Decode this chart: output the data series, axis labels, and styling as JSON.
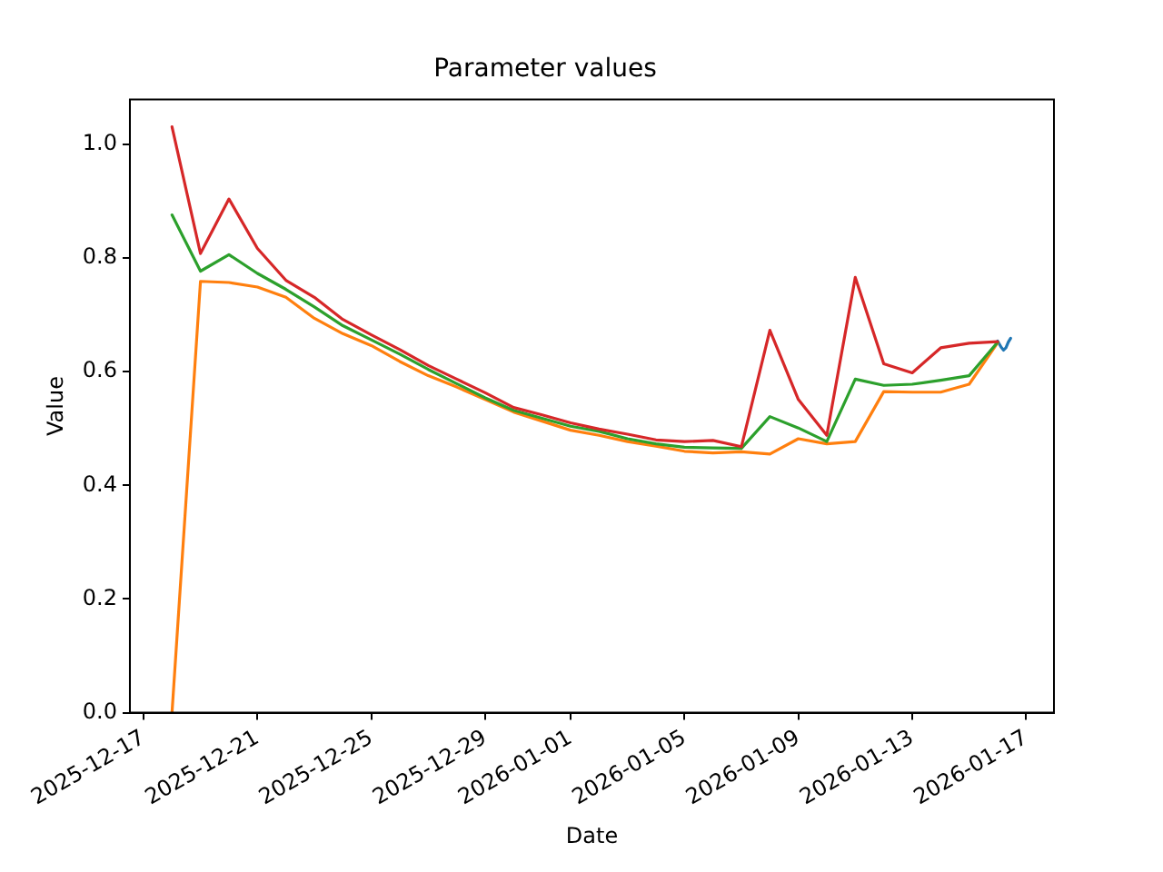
{
  "chart_data": {
    "type": "line",
    "title": "Parameter values",
    "xlabel": "Date",
    "ylabel": "Value",
    "xlim": [
      "2025-12-16T12:30",
      "2026-01-17T23:30"
    ],
    "xticks": [
      "2025-12-17",
      "2025-12-21",
      "2025-12-25",
      "2025-12-29",
      "2026-01-01",
      "2026-01-05",
      "2026-01-09",
      "2026-01-13",
      "2026-01-17"
    ],
    "ylim": [
      0,
      1.079
    ],
    "yticks": [
      {
        "value": 0,
        "label": "0.0"
      },
      0.2,
      0.4,
      0.6,
      0.8,
      {
        "value": 1,
        "label": "1.0"
      }
    ],
    "grid": false,
    "legend": false,
    "marker": "none",
    "line_style": "solid",
    "series": [
      {
        "color": "#1f77b4",
        "x": [
          "2026-01-16T00:00",
          "2026-01-16T03:00",
          "2026-01-16T05:00",
          "2026-01-16T07:00",
          "2026-01-16T09:00",
          "2026-01-16T11:00"
        ],
        "values": [
          0.654,
          0.643,
          0.638,
          0.642,
          0.652,
          0.659
        ]
      },
      {
        "color": "#ff7f0e",
        "x": [
          "2025-12-18",
          "2025-12-19",
          "2025-12-20",
          "2025-12-21",
          "2025-12-22",
          "2025-12-23",
          "2025-12-24",
          "2025-12-25",
          "2025-12-26",
          "2025-12-27",
          "2025-12-28",
          "2025-12-29",
          "2025-12-30",
          "2025-12-31",
          "2026-01-01",
          "2026-01-02",
          "2026-01-03",
          "2026-01-04",
          "2026-01-05",
          "2026-01-06",
          "2026-01-07",
          "2026-01-08",
          "2026-01-09",
          "2026-01-10",
          "2026-01-11",
          "2026-01-12",
          "2026-01-13",
          "2026-01-14",
          "2026-01-15",
          "2026-01-16"
        ],
        "values": [
          0,
          0.759,
          0.757,
          0.749,
          0.731,
          0.694,
          0.667,
          0.646,
          0.618,
          0.593,
          0.573,
          0.551,
          0.529,
          0.513,
          0.497,
          0.488,
          0.477,
          0.469,
          0.46,
          0.457,
          0.459,
          0.455,
          0.482,
          0.473,
          0.477,
          0.565,
          0.564,
          0.564,
          0.578,
          0.651
        ]
      },
      {
        "color": "#2ca02c",
        "x": [
          "2025-12-18",
          "2025-12-19",
          "2025-12-20",
          "2025-12-21",
          "2025-12-22",
          "2025-12-23",
          "2025-12-24",
          "2025-12-25",
          "2025-12-26",
          "2025-12-27",
          "2025-12-28",
          "2025-12-29",
          "2025-12-30",
          "2025-12-31",
          "2026-01-01",
          "2026-01-02",
          "2026-01-03",
          "2026-01-04",
          "2026-01-05",
          "2026-01-06",
          "2026-01-07",
          "2026-01-08",
          "2026-01-09",
          "2026-01-10",
          "2026-01-11",
          "2026-01-12",
          "2026-01-13",
          "2026-01-14",
          "2026-01-15",
          "2026-01-16"
        ],
        "values": [
          0.876,
          0.777,
          0.806,
          0.773,
          0.745,
          0.714,
          0.681,
          0.656,
          0.631,
          0.604,
          0.579,
          0.554,
          0.532,
          0.518,
          0.504,
          0.495,
          0.482,
          0.473,
          0.467,
          0.466,
          0.465,
          0.521,
          0.501,
          0.477,
          0.587,
          0.576,
          0.578,
          0.585,
          0.593,
          0.652
        ]
      },
      {
        "color": "#d62728",
        "x": [
          "2025-12-18",
          "2025-12-19",
          "2025-12-20",
          "2025-12-21",
          "2025-12-22",
          "2025-12-23",
          "2025-12-24",
          "2025-12-25",
          "2025-12-26",
          "2025-12-27",
          "2025-12-28",
          "2025-12-29",
          "2025-12-30",
          "2025-12-31",
          "2026-01-01",
          "2026-01-02",
          "2026-01-03",
          "2026-01-04",
          "2026-01-05",
          "2026-01-06",
          "2026-01-07",
          "2026-01-08",
          "2026-01-09",
          "2026-01-10",
          "2026-01-11",
          "2026-01-12",
          "2026-01-13",
          "2026-01-14",
          "2026-01-15",
          "2026-01-16"
        ],
        "values": [
          1.031,
          0.808,
          0.904,
          0.817,
          0.761,
          0.731,
          0.692,
          0.665,
          0.639,
          0.611,
          0.587,
          0.563,
          0.537,
          0.524,
          0.51,
          0.499,
          0.49,
          0.48,
          0.477,
          0.479,
          0.468,
          0.673,
          0.551,
          0.488,
          0.766,
          0.614,
          0.598,
          0.642,
          0.65,
          0.653
        ]
      }
    ]
  }
}
